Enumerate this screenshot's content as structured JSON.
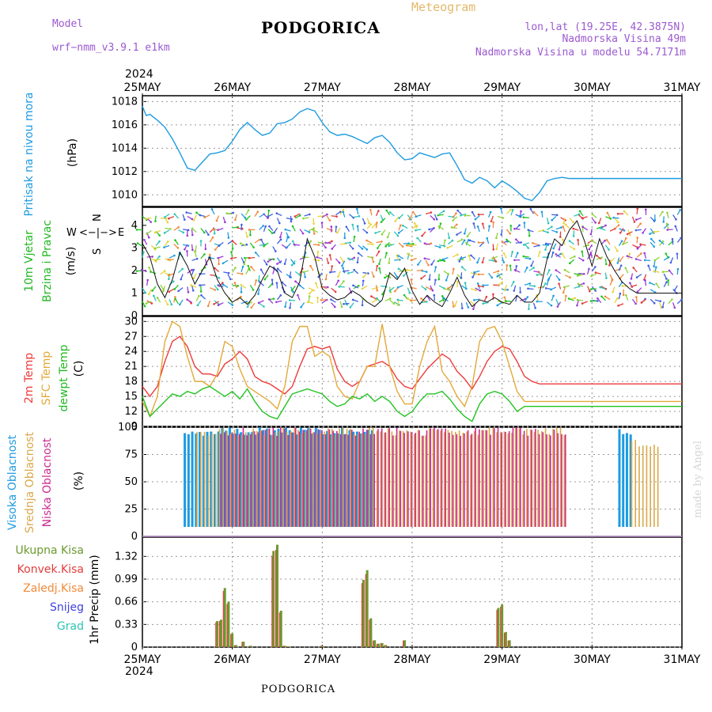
{
  "header": {
    "model_label": "Model",
    "model_name": "wrf−nmm_v3.9.1  e1km",
    "title": "PODGORICA",
    "meteogram": "Meteogram",
    "lonlat": "lon,lat (19.25E, 42.3875N)",
    "elevation": "Nadmorska Visina 49m",
    "model_elevation": "Nadmorska Visina u modelu 54.7171m"
  },
  "footer": {
    "station": "PODGORICA",
    "watermark": "made by Angel"
  },
  "time_axis": {
    "year_top": "2024",
    "year_bottom": "2024",
    "labels": [
      "25MAY",
      "26MAY",
      "27MAY",
      "28MAY",
      "29MAY",
      "30MAY",
      "31MAY"
    ]
  },
  "colors": {
    "pressure": "#1e9be0",
    "t2m": "#ee3b3b",
    "tsfc": "#e3a93a",
    "dewpt": "#22c322",
    "high_cloud": "#1e9be0",
    "mid_cloud": "#d9a84a",
    "low_cloud": "#cc2b8f",
    "total_precip": "#6b9a2f",
    "convective": "#e23c3c",
    "freezing": "#f08a3a",
    "snow": "#4040e0",
    "hail": "#2ec4b6",
    "wind_axis": "#b05ad6"
  },
  "panels": {
    "pressure": {
      "ylabel_colored": "Pritisak na nivou mora",
      "unit": "(hPa)",
      "yticks": [
        "1010",
        "1012",
        "1014",
        "1016",
        "1018"
      ]
    },
    "wind": {
      "ylabel_colored_1": "10m Vjetar",
      "ylabel_colored_2": "Brzina i Pravac",
      "unit": "(m/s)",
      "yticks": [
        "0",
        "1",
        "2",
        "3",
        "4"
      ],
      "compass_w": "W",
      "compass_e": "E",
      "compass_mid": "<−|−>",
      "compass_n": "N",
      "compass_s": "S"
    },
    "temp": {
      "l1": "2m Temp",
      "l2": "SFC Temp",
      "l3": "dewpt Temp",
      "unit": "(C)",
      "yticks": [
        "9",
        "12",
        "15",
        "18",
        "21",
        "24",
        "27",
        "30"
      ]
    },
    "cloud": {
      "l1": "Visoka Oblacnost",
      "l2": "Srednja Oblacnost",
      "l3": "Niska Oblacnost",
      "unit": "(%)",
      "yticks": [
        "0",
        "25",
        "50",
        "75",
        "100"
      ]
    },
    "precip": {
      "legend": [
        "Ukupna Kisa",
        "Konvek.Kisa",
        "Zaledj.Kisa",
        "Snijeg",
        "Grad"
      ],
      "unit": "1hr Precip (mm)",
      "yticks": [
        "0",
        "0.33",
        "0.66",
        "0.99",
        "1.32"
      ]
    }
  },
  "chart_data": [
    {
      "type": "line",
      "name": "pressure",
      "x_hours": [
        0,
        1,
        2,
        4,
        6,
        8,
        10,
        12,
        14,
        16,
        18,
        20,
        22,
        24,
        26,
        28,
        30,
        32,
        34,
        36,
        38,
        40,
        42,
        44,
        46,
        48,
        50,
        52,
        54,
        56,
        58,
        60,
        62,
        64,
        66,
        68,
        70,
        72,
        74,
        76,
        78,
        80,
        82,
        84,
        86,
        88,
        90,
        92,
        94,
        96,
        98,
        100,
        102,
        104,
        106,
        108,
        110,
        112,
        114,
        116,
        118,
        120,
        122,
        124,
        126,
        128,
        130,
        132,
        134,
        136,
        138,
        140,
        142,
        144
      ],
      "values": [
        1017.6,
        1016.8,
        1016.9,
        1016.4,
        1015.8,
        1014.8,
        1013.6,
        1012.3,
        1012.1,
        1012.8,
        1013.5,
        1013.6,
        1013.8,
        1014.6,
        1015.6,
        1016.2,
        1015.6,
        1015.1,
        1015.3,
        1016.1,
        1016.2,
        1016.5,
        1017.1,
        1017.4,
        1017.2,
        1016.2,
        1015.4,
        1015.1,
        1015.2,
        1015.0,
        1014.7,
        1014.4,
        1014.9,
        1015.1,
        1014.5,
        1013.6,
        1013.0,
        1013.1,
        1013.6,
        1013.4,
        1013.2,
        1013.5,
        1013.6,
        1012.5,
        1011.3,
        1011.0,
        1011.5,
        1011.2,
        1010.6,
        1011.2,
        1010.8,
        1010.3,
        1009.7,
        1009.5,
        1010.2,
        1011.2,
        1011.4,
        1011.5,
        1011.4,
        1011.4,
        1011.4,
        1011.4,
        1011.4,
        1011.4,
        1011.4,
        1011.4,
        1011.4,
        1011.4,
        1011.4,
        1011.4,
        1011.4,
        1011.4,
        1011.4,
        1011.4
      ],
      "ylim": [
        1009,
        1018.5
      ]
    },
    {
      "type": "line",
      "name": "wind_speed",
      "x_hours": [
        0,
        2,
        4,
        6,
        8,
        10,
        12,
        14,
        16,
        18,
        20,
        22,
        24,
        26,
        28,
        30,
        32,
        34,
        36,
        38,
        40,
        42,
        44,
        46,
        48,
        50,
        52,
        54,
        56,
        58,
        60,
        62,
        64,
        66,
        68,
        70,
        72,
        74,
        76,
        78,
        80,
        82,
        84,
        86,
        88,
        90,
        92,
        94,
        96,
        98,
        100,
        102,
        104,
        106,
        108,
        110,
        112,
        114,
        116,
        118,
        120,
        122,
        124,
        126,
        128,
        130,
        132,
        134,
        136,
        138,
        140,
        142,
        144
      ],
      "values": [
        3.2,
        2.6,
        1.4,
        0.8,
        1.6,
        2.8,
        2.2,
        1.4,
        2.0,
        2.6,
        1.6,
        1.0,
        0.6,
        0.8,
        0.5,
        0.9,
        1.6,
        2.2,
        2.0,
        1.0,
        0.8,
        1.5,
        3.4,
        2.6,
        1.2,
        0.9,
        0.7,
        0.8,
        1.1,
        0.9,
        0.6,
        0.4,
        0.7,
        1.9,
        1.6,
        2.1,
        1.1,
        0.5,
        0.9,
        0.6,
        0.4,
        1.0,
        1.7,
        0.9,
        0.4,
        0.7,
        0.6,
        0.8,
        0.6,
        0.5,
        0.9,
        0.6,
        0.6,
        1.0,
        2.5,
        3.4,
        3.1,
        3.8,
        4.2,
        3.3,
        2.2,
        3.4,
        2.6,
        2.0,
        1.5,
        1.2,
        1.0,
        1.0,
        1.0,
        1.0,
        1.0,
        1.0,
        1.0
      ],
      "ylim": [
        0,
        4.8
      ]
    },
    {
      "type": "line",
      "name": "temperature",
      "x_hours": [
        0,
        2,
        4,
        6,
        8,
        10,
        12,
        14,
        16,
        18,
        20,
        22,
        24,
        26,
        28,
        30,
        32,
        34,
        36,
        38,
        40,
        42,
        44,
        46,
        48,
        50,
        52,
        54,
        56,
        58,
        60,
        62,
        64,
        66,
        68,
        70,
        72,
        74,
        76,
        78,
        80,
        82,
        84,
        86,
        88,
        90,
        92,
        94,
        96,
        98,
        100,
        102,
        104,
        106,
        108,
        110,
        112,
        114,
        116,
        118,
        120,
        122,
        124,
        126,
        128,
        130,
        132,
        134,
        136,
        138,
        140,
        142,
        144
      ],
      "series": [
        {
          "name": "2m Temp",
          "values": [
            17,
            15,
            17,
            22,
            26,
            27,
            25,
            21,
            19.5,
            19.5,
            19,
            21.5,
            22.5,
            24,
            22.5,
            19,
            18,
            17.5,
            16.5,
            15.5,
            17,
            21,
            24.5,
            25,
            24.5,
            25,
            20.5,
            18,
            17,
            18,
            21,
            21.5,
            22,
            21,
            18.5,
            17,
            16.5,
            18.5,
            20.5,
            22,
            23.5,
            22.5,
            20,
            18.5,
            16.5,
            19,
            22,
            24,
            25,
            24.5,
            22,
            19,
            18,
            17.5,
            17.5,
            17.5,
            17.5,
            17.5,
            17.5,
            17.5,
            17.5,
            17.5,
            17.5,
            17.5,
            17.5,
            17.5,
            17.5,
            17.5,
            17.5,
            17.5,
            17.5,
            17.5,
            17.5
          ]
        },
        {
          "name": "SFC Temp",
          "values": [
            14,
            11,
            15,
            26,
            30,
            29,
            23,
            18,
            18,
            17,
            19.5,
            26,
            25,
            20.5,
            17,
            16,
            15,
            14,
            12.5,
            17,
            26,
            29,
            29,
            23,
            24,
            23,
            17,
            15,
            14.5,
            18,
            21,
            21,
            29.5,
            21,
            16,
            13.5,
            13.5,
            21,
            26,
            29,
            20,
            18,
            15,
            13,
            17,
            26,
            28.5,
            29,
            26,
            21,
            16,
            14,
            14,
            14,
            14,
            14,
            14,
            14,
            14,
            14,
            14,
            14,
            14,
            14,
            14,
            14,
            14,
            14,
            14,
            14,
            14,
            14,
            14
          ]
        },
        {
          "name": "dewpt Temp",
          "values": [
            15,
            11,
            12.5,
            14,
            15.5,
            15,
            16,
            15.5,
            16.5,
            17,
            16,
            15,
            16,
            14.5,
            16.5,
            14,
            12,
            11,
            10.5,
            13,
            15.5,
            16,
            16.5,
            16,
            15.5,
            14,
            13,
            13.5,
            15,
            14.5,
            15.5,
            14,
            15,
            14,
            12,
            11,
            12,
            14,
            15.5,
            15.5,
            16,
            14.5,
            12.5,
            11,
            10,
            13.5,
            15.5,
            16,
            15.5,
            14,
            12,
            13,
            13,
            13,
            13,
            13,
            13,
            13,
            13,
            13,
            13,
            13,
            13,
            13,
            13,
            13,
            13,
            13,
            13,
            13,
            13,
            13,
            13
          ]
        }
      ],
      "ylim": [
        9,
        31
      ]
    },
    {
      "type": "bar",
      "name": "cloud_cover",
      "segments": [
        {
          "name": "Visoka Oblacnost",
          "start_hour": 11,
          "end_hour": 61,
          "value": 100
        },
        {
          "name": "Srednja Oblacnost",
          "start_hour": 14,
          "end_hour": 112,
          "value": 100
        },
        {
          "name": "Niska Oblacnost",
          "start_hour": 20,
          "end_hour": 112,
          "value": 100
        },
        {
          "name": "Visoka Oblacnost",
          "start_hour": 127,
          "end_hour": 130,
          "value": 100
        },
        {
          "name": "Srednja Oblacnost",
          "start_hour": 130,
          "end_hour": 137,
          "value": 90
        }
      ],
      "ylim": [
        0,
        100
      ]
    },
    {
      "type": "bar",
      "name": "precipitation",
      "x_hours": [
        20,
        21,
        22,
        23,
        24,
        25,
        27,
        29,
        35,
        36,
        37,
        38,
        39,
        48,
        59,
        60,
        61,
        62,
        63,
        64,
        65,
        70,
        95,
        96,
        97,
        98
      ],
      "values": [
        0.38,
        0.4,
        0.86,
        0.66,
        0.2,
        0.03,
        0.08,
        0.02,
        1.4,
        1.49,
        0.53,
        0.02,
        0.01,
        0.02,
        0.98,
        1.12,
        0.42,
        0.1,
        0.05,
        0.06,
        0.03,
        0.1,
        0.57,
        0.62,
        0.22,
        0.1
      ],
      "ylim": [
        0,
        1.6
      ]
    }
  ]
}
